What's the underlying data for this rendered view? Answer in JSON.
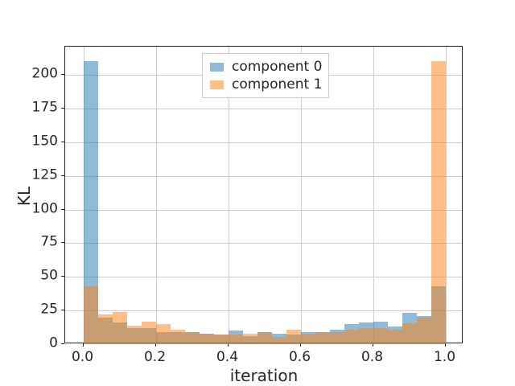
{
  "chart_data": {
    "type": "histogram-bar",
    "title": "",
    "xlabel": "iteration",
    "ylabel": "KL",
    "xlim": [
      -0.05,
      1.05
    ],
    "ylim": [
      0,
      221
    ],
    "grid": true,
    "legend_position": "upper center",
    "x_ticks": [
      {
        "value": 0.0,
        "label": "0.0"
      },
      {
        "value": 0.2,
        "label": "0.2"
      },
      {
        "value": 0.4,
        "label": "0.4"
      },
      {
        "value": 0.6,
        "label": "0.6"
      },
      {
        "value": 0.8,
        "label": "0.8"
      },
      {
        "value": 1.0,
        "label": "1.0"
      }
    ],
    "y_ticks": [
      {
        "value": 0,
        "label": "0"
      },
      {
        "value": 25,
        "label": "25"
      },
      {
        "value": 50,
        "label": "50"
      },
      {
        "value": 75,
        "label": "75"
      },
      {
        "value": 100,
        "label": "100"
      },
      {
        "value": 125,
        "label": "125"
      },
      {
        "value": 150,
        "label": "150"
      },
      {
        "value": 175,
        "label": "175"
      },
      {
        "value": 200,
        "label": "200"
      }
    ],
    "bins": {
      "start": 0.0,
      "width": 0.04,
      "count": 25
    },
    "series": [
      {
        "name": "component 0",
        "color": "#1f77b4",
        "alpha": 0.5,
        "values": [
          210,
          20,
          16,
          12,
          12,
          9,
          9,
          9,
          8,
          7,
          10,
          6,
          9,
          8,
          7,
          9,
          9,
          11,
          15,
          16,
          17,
          13,
          23,
          21,
          43
        ]
      },
      {
        "name": "component 1",
        "color": "#ff7f0e",
        "alpha": 0.5,
        "values": [
          43,
          22,
          24,
          13.5,
          17,
          15,
          11,
          9,
          8,
          7,
          7,
          8,
          9,
          5.5,
          11,
          8,
          9,
          9,
          10.5,
          12,
          12,
          11,
          15.5,
          19.5,
          210
        ]
      }
    ]
  },
  "colors": {
    "grid": "#cccccc",
    "spine": "#262626",
    "text": "#262626",
    "background": "#ffffff"
  }
}
